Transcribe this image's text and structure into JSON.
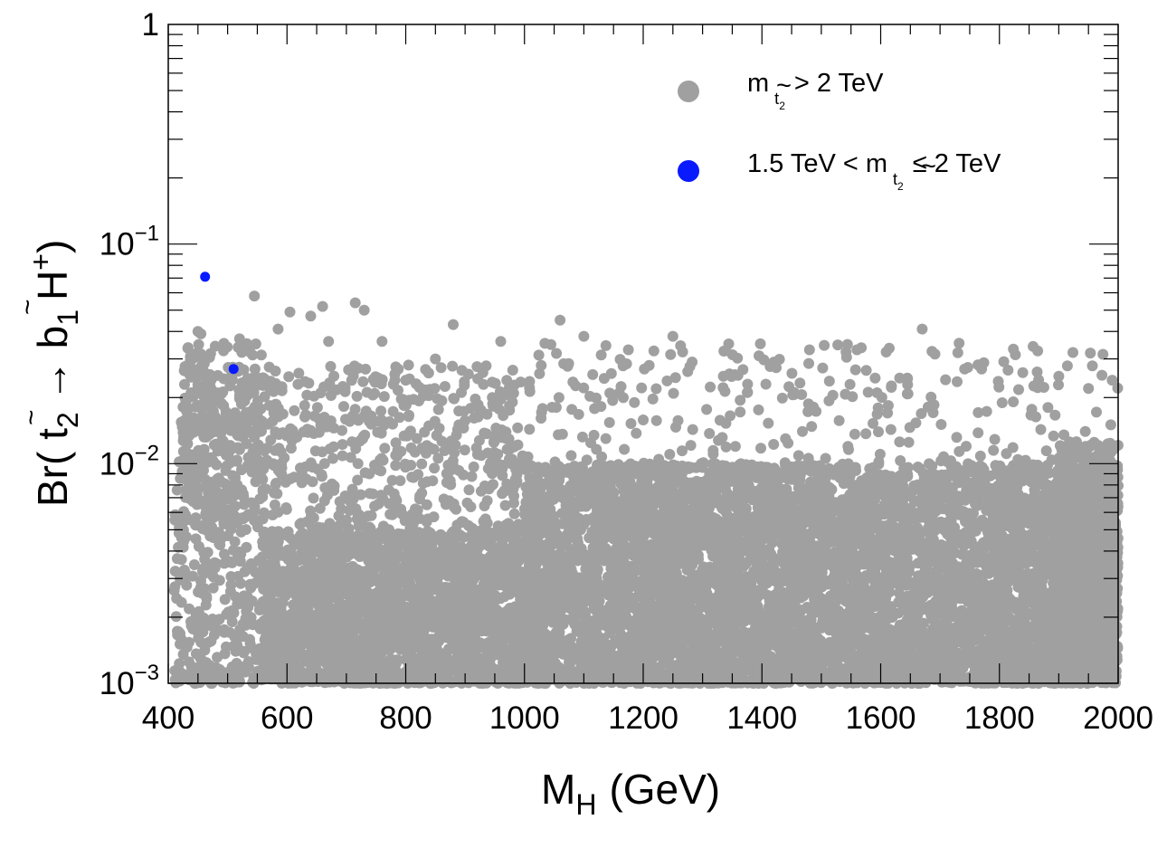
{
  "chart_data": {
    "type": "scatter",
    "title": "",
    "xlabel": {
      "main": "M",
      "sub": "H",
      "units": "(GeV)"
    },
    "ylabel": {
      "prefix": "Br( ",
      "arrow": "→",
      "sub1": "2",
      "sub2": "1",
      "letter_t": "t",
      "letter_b": "b",
      "letter_h": "H",
      "sup": "+",
      "suffix": ")",
      "tilde": "~"
    },
    "xlim": [
      400,
      2000
    ],
    "ylim": [
      0.001,
      1
    ],
    "yscale": "log",
    "x_ticks": [
      400,
      600,
      800,
      1000,
      1200,
      1400,
      1600,
      1800,
      2000
    ],
    "x_tick_labels": [
      "400",
      "600",
      "800",
      "1000",
      "1200",
      "1400",
      "1600",
      "1800",
      "2000"
    ],
    "y_ticks": [
      {
        "value": 0.001,
        "base": "10",
        "exp": "−3"
      },
      {
        "value": 0.01,
        "base": "10",
        "exp": "−2"
      },
      {
        "value": 0.1,
        "base": "10",
        "exp": "−1"
      },
      {
        "value": 1,
        "base": "1",
        "exp": ""
      }
    ],
    "legend_position": "top-right",
    "legend": [
      {
        "name": "m_t2 > 2 TeV",
        "prefix": "m",
        "sub": "t",
        "subsub": "2",
        "tilde": "~",
        "suffix": "> 2 TeV",
        "color": "#a0a0a0"
      },
      {
        "name": "1.5 TeV < m_t2 ≤ 2 TeV",
        "prefix": "1.5 TeV < m",
        "sub": "t",
        "subsub": "2",
        "tilde": "~",
        "suffix": "≤ 2 TeV",
        "color": "#0a1aff"
      }
    ],
    "series": [
      {
        "name": "m_t2 > 2 TeV",
        "color": "#a0a0a0",
        "points": [
          [
            450,
            0.04
          ],
          [
            455,
            0.039
          ],
          [
            470,
            0.023
          ],
          [
            520,
            0.037
          ],
          [
            545,
            0.058
          ],
          [
            585,
            0.041
          ],
          [
            605,
            0.049
          ],
          [
            640,
            0.047
          ],
          [
            660,
            0.052
          ],
          [
            715,
            0.054
          ],
          [
            730,
            0.05
          ],
          [
            670,
            0.036
          ],
          [
            760,
            0.036
          ],
          [
            800,
            0.024
          ],
          [
            880,
            0.043
          ],
          [
            960,
            0.036
          ],
          [
            1060,
            0.045
          ],
          [
            1100,
            0.038
          ],
          [
            1175,
            0.033
          ],
          [
            1250,
            0.038
          ],
          [
            1335,
            0.025
          ],
          [
            1395,
            0.031
          ],
          [
            1480,
            0.033
          ],
          [
            1560,
            0.033
          ],
          [
            1670,
            0.041
          ],
          [
            1730,
            0.032
          ],
          [
            1770,
            0.027
          ],
          [
            1900,
            0.025
          ],
          [
            1990,
            0.024
          ],
          [
            1950,
            0.022
          ],
          [
            1420,
            0.029
          ],
          [
            1210,
            0.028
          ],
          [
            930,
            0.026
          ],
          [
            850,
            0.03
          ]
        ],
        "clusters": [
          {
            "xmin": 410,
            "xmax": 1000,
            "logmin": -3.0,
            "logmax": -1.55,
            "count": 1700,
            "bias": 1.6
          },
          {
            "xmin": 420,
            "xmax": 560,
            "logmin": -2.3,
            "logmax": -1.45,
            "count": 220,
            "bias": 1.0
          },
          {
            "xmin": 1000,
            "xmax": 2000,
            "logmin": -3.0,
            "logmax": -1.45,
            "count": 1500,
            "bias": 2.2
          },
          {
            "xmin": 1000,
            "xmax": 2000,
            "logmin": -3.0,
            "logmax": -2.0,
            "count": 5200,
            "bias": 1.0
          },
          {
            "xmin": 1900,
            "xmax": 2000,
            "logmin": -3.0,
            "logmax": -1.9,
            "count": 700,
            "bias": 1.0
          },
          {
            "xmin": 560,
            "xmax": 1000,
            "logmin": -3.0,
            "logmax": -2.3,
            "count": 1400,
            "bias": 1.0
          }
        ]
      },
      {
        "name": "1.5 TeV < m_t2 ≤ 2 TeV",
        "color": "#0a1aff",
        "points": [
          [
            462,
            0.071
          ],
          [
            510,
            0.027
          ]
        ]
      }
    ]
  }
}
